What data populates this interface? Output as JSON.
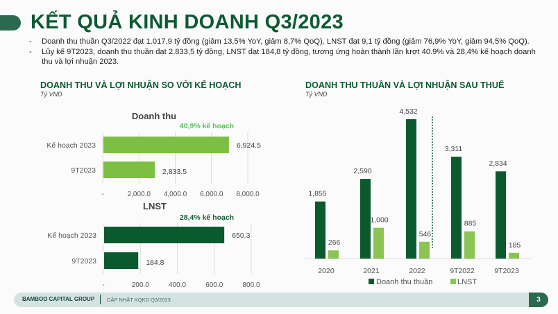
{
  "title": "KẾT QUẢ KINH DOANH Q3/2023",
  "bullets": [
    {
      "dash": "-",
      "text": "Doanh thu thuần Q3/2022 đạt 1.017,9 tỷ đồng (giảm 13,5% YoY, giảm 8,7% QoQ), LNST đạt 9,1 tỷ đồng (giảm 76,9% YoY, giảm 94,5% QoQ)."
    },
    {
      "dash": "-",
      "text": "Lũy kế 9T2023, doanh thu thuần đạt 2.833,5 tỷ đồng, LNST đạt 184,8 tỷ đồng, tương ứng hoàn thành lần lượt 40.9% và 28,4% kế hoạch doanh thu và lợi nhuận 2023."
    }
  ],
  "left_section": {
    "title": "DOANH THU VÀ LỢI NHUẬN SO VỚI KẾ HOẠCH",
    "unit": "Tỷ VND"
  },
  "right_section": {
    "title": "DOANH THU THUẦN VÀ LỢI NHUẬN SAU THUẾ",
    "unit": "Tỷ VND"
  },
  "footer": {
    "brand": "BAMBOO CAPITAL GROUP",
    "subtitle": "CẬP NHẬT KQKD Q3/2023",
    "page": "3"
  },
  "chart_data": [
    {
      "type": "bar",
      "orientation": "horizontal",
      "title": "Doanh thu",
      "annotation": "40,9% kế hoạch",
      "categories": [
        "Kế hoạch 2023",
        "9T2023"
      ],
      "values": [
        6924.5,
        2833.5
      ],
      "value_labels": [
        "6,924.5",
        "2,833.5"
      ],
      "xlim": [
        0,
        8000
      ],
      "ticks": [
        0,
        2000,
        4000,
        6000,
        8000
      ],
      "tick_labels": [
        "-",
        "2,000.0",
        "4,000.0",
        "6,000.0",
        "8,000.0"
      ],
      "color": "#7cbf42",
      "grid": true
    },
    {
      "type": "bar",
      "orientation": "horizontal",
      "title": "LNST",
      "annotation": "28,4% kế hoạch",
      "categories": [
        "Kế hoạch 2023",
        "9T2023"
      ],
      "values": [
        650.3,
        184.8
      ],
      "value_labels": [
        "650.3",
        "184.8"
      ],
      "xlim": [
        0,
        800
      ],
      "ticks": [
        0,
        200,
        400,
        600,
        800
      ],
      "tick_labels": [
        "-",
        "200.0",
        "400.0",
        "600.0",
        "800.0"
      ],
      "color": "#0b5a2e",
      "grid": true
    },
    {
      "type": "bar",
      "orientation": "vertical",
      "title": "DOANH THU THUẦN VÀ LỢI NHUẬN SAU THUẾ",
      "categories": [
        "2020",
        "2021",
        "2022",
        "9T2022",
        "9T2023"
      ],
      "series": [
        {
          "name": "Doanh thu thuần",
          "values": [
            1855,
            2590,
            4532,
            3311,
            2834
          ],
          "labels": [
            "1,855",
            "2,590",
            "4,532",
            "3,311",
            "2,834"
          ],
          "color": "#0b5a2e"
        },
        {
          "name": "LNST",
          "values": [
            266,
            1000,
            546,
            885,
            185
          ],
          "labels": [
            "266",
            "1,000",
            "546",
            "885",
            "185"
          ],
          "color": "#8cc454"
        }
      ],
      "ylim": [
        0,
        4800
      ],
      "divider_after": "2022",
      "legend": "bottom",
      "grid": false
    }
  ]
}
